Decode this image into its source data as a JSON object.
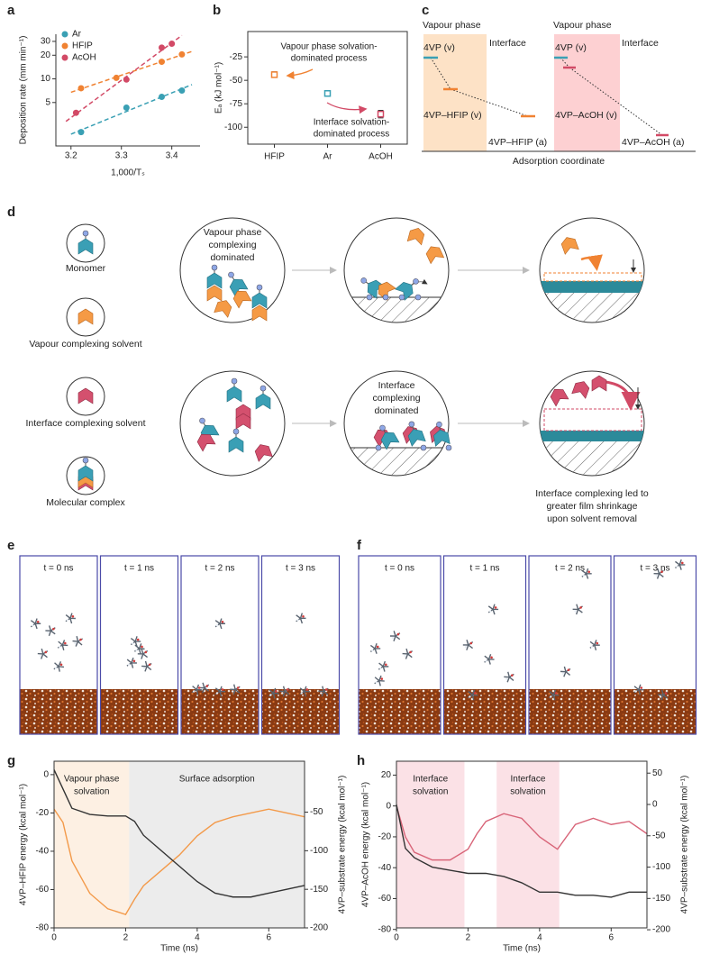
{
  "chart_data": [
    {
      "panel": "a",
      "type": "scatter",
      "xlabel": "1,000/Tₛ",
      "ylabel": "Deposition rate (mm min⁻¹)",
      "log_y": true,
      "fit": "dashed",
      "legend": "upper left",
      "xlim": [
        3.17,
        3.456
      ],
      "ylim": [
        1.4,
        37
      ],
      "xticks": [
        3.2,
        3.3,
        3.4
      ],
      "yticks": [
        5,
        10,
        20,
        30
      ],
      "series": [
        {
          "name": "Ar",
          "color": "#3aa0b4",
          "x": [
            3.22,
            3.31,
            3.38,
            3.42
          ],
          "values": [
            2.1,
            4.3,
            5.9,
            7.1
          ]
        },
        {
          "name": "HFIP",
          "color": "#f08232",
          "x": [
            3.22,
            3.29,
            3.38,
            3.42
          ],
          "values": [
            7.6,
            10.3,
            16.5,
            20.5
          ]
        },
        {
          "name": "AcOH",
          "color": "#d24a66",
          "x": [
            3.21,
            3.31,
            3.38,
            3.4
          ],
          "values": [
            3.7,
            9.8,
            25,
            28
          ]
        }
      ]
    },
    {
      "panel": "b",
      "type": "errorbar",
      "ylabel": "Eₐ (kJ mol⁻¹)",
      "categories": [
        "HFIP",
        "Ar",
        "AcOH"
      ],
      "values": [
        -44,
        -64,
        -86
      ],
      "errors": [
        3,
        3,
        4
      ],
      "colors": [
        "#f08232",
        "#3aa0b4",
        "#d24a66"
      ],
      "ylim": [
        -118,
        2
      ],
      "yticks": [
        -100,
        -75,
        -50,
        -25
      ],
      "annotations": [
        {
          "lines": [
            "Vapour phase solvation-",
            "dominated process"
          ],
          "color": "#f08232"
        },
        {
          "lines": [
            "Interface solvation-",
            "dominated process"
          ],
          "color": "#d24a66"
        }
      ]
    },
    {
      "panel": "g",
      "type": "line",
      "xlabel": "Time (ns)",
      "ylabel": "4VP–HFIP energy (kcal mol⁻¹)",
      "y2label": "4VP–substrate energy (kcal mol⁻¹)",
      "xlim": [
        0,
        7
      ],
      "xticks": [
        0,
        2,
        4,
        6
      ],
      "ylim": [
        -80,
        7
      ],
      "yticks": [
        -80,
        -60,
        -40,
        -20,
        0
      ],
      "y2lim": [
        -200,
        16
      ],
      "y2ticks": [
        -200,
        -150,
        -100,
        -50
      ],
      "regions": [
        {
          "lines": [
            "Vapour phase",
            "solvation"
          ],
          "x": [
            0,
            2.1
          ],
          "color": "#fdf0e3"
        },
        {
          "lines": [
            "Surface adsorption"
          ],
          "x": [
            2.1,
            7
          ],
          "color": "#ececec"
        }
      ],
      "x": [
        0,
        0.25,
        0.5,
        1,
        1.5,
        2,
        2.25,
        2.5,
        3,
        3.5,
        4,
        4.5,
        5,
        5.5,
        6,
        6.5,
        7
      ],
      "series": [
        {
          "color": "#f39a4a",
          "axis": "y",
          "values": [
            -18,
            -25,
            -45,
            -62,
            -70,
            -73,
            -65,
            -58,
            -50,
            -42,
            -32,
            -25,
            -22,
            -20,
            -18,
            -20,
            -22
          ]
        },
        {
          "color": "#333333",
          "axis": "y2",
          "values": [
            5,
            -20,
            -45,
            -53,
            -55,
            -55,
            -62,
            -80,
            -100,
            -120,
            -140,
            -155,
            -160,
            -160,
            -155,
            -150,
            -145
          ]
        }
      ]
    },
    {
      "panel": "h",
      "type": "line",
      "xlabel": "Time (ns)",
      "ylabel": "4VP–AcOH energy (kcal mol⁻¹)",
      "y2label": "4VP–substrate energy (kcal mol⁻¹)",
      "xlim": [
        0,
        7
      ],
      "xticks": [
        0,
        2,
        4,
        6
      ],
      "ylim": [
        -79,
        29
      ],
      "yticks": [
        -80,
        -60,
        -40,
        -20,
        0,
        20
      ],
      "y2lim": [
        -197,
        69
      ],
      "y2ticks": [
        -200,
        -150,
        -100,
        -50,
        0,
        50
      ],
      "regions": [
        {
          "lines": [
            "Interface",
            "solvation"
          ],
          "x": [
            0,
            1.9
          ],
          "color": "#fbe1e6"
        },
        {
          "lines": [
            "Interface",
            "solvation"
          ],
          "x": [
            2.8,
            4.55
          ],
          "color": "#fbe1e6"
        }
      ],
      "x": [
        0,
        0.25,
        0.5,
        1,
        1.5,
        2,
        2.25,
        2.5,
        3,
        3.5,
        4,
        4.5,
        5,
        5.5,
        6,
        6.5,
        7
      ],
      "series": [
        {
          "color": "#d86478",
          "axis": "y",
          "values": [
            0,
            -20,
            -30,
            -35,
            -35,
            -28,
            -18,
            -10,
            -5,
            -8,
            -20,
            -28,
            -12,
            -8,
            -12,
            -10,
            -18
          ]
        },
        {
          "color": "#333333",
          "axis": "y2",
          "values": [
            0,
            -70,
            -85,
            -100,
            -105,
            -110,
            -110,
            -110,
            -115,
            -125,
            -140,
            -140,
            -145,
            -145,
            -148,
            -140,
            -140
          ]
        }
      ]
    }
  ],
  "panel_c": {
    "panel": "c",
    "xlabel": "Adsorption coordinate",
    "left": {
      "phase": "Vapour phase",
      "interface": "Interface",
      "levels": [
        "4VP (v)",
        "4VP–HFIP (v)",
        "4VP–HFIP (a)"
      ]
    },
    "right": {
      "phase": "Vapour phase",
      "interface": "Interface",
      "levels": [
        "4VP (v)",
        "4VP–AcOH (v)",
        "4VP–AcOH (a)"
      ]
    }
  },
  "panel_d": {
    "panel": "d",
    "legend": [
      "Monomer",
      "Vapour complexing solvent",
      "Interface complexing solvent",
      "Molecular complex"
    ],
    "top_label": [
      "Vapour phase",
      "complexing",
      "dominated"
    ],
    "bottom_label": [
      "Interface",
      "complexing",
      "dominated"
    ],
    "caption": [
      "Interface complexing led to",
      "greater film shrinkage",
      "upon solvent removal"
    ]
  },
  "panel_e": {
    "panel": "e",
    "frames": [
      "t = 0 ns",
      "t = 1 ns",
      "t = 2 ns",
      "t = 3 ns"
    ]
  },
  "panel_f": {
    "panel": "f",
    "frames": [
      "t = 0 ns",
      "t = 1 ns",
      "t = 2 ns",
      "t = 3 ns"
    ]
  }
}
